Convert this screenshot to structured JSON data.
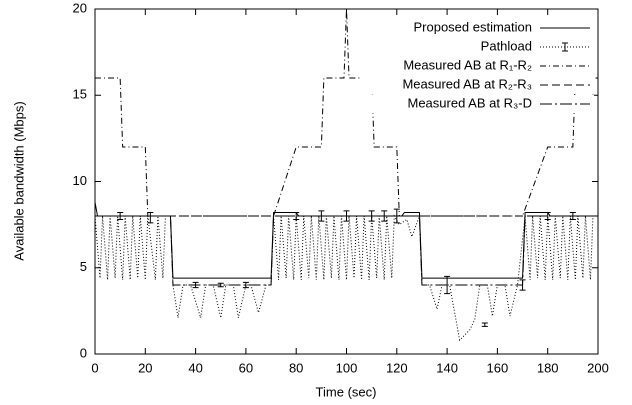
{
  "chart_data": {
    "type": "line",
    "xlabel": "Time (sec)",
    "ylabel": "Available bandwidth (Mbps)",
    "xlim": [
      0,
      200
    ],
    "xticks": [
      0,
      20,
      40,
      60,
      80,
      100,
      120,
      140,
      160,
      180,
      200
    ],
    "ylim": [
      0,
      20
    ],
    "yticks": [
      0,
      5,
      10,
      15,
      20
    ],
    "legend": "upper right",
    "series": [
      {
        "name": "Proposed estimation",
        "color": "#000000",
        "dash": "none",
        "x": [
          0,
          1,
          30,
          31,
          70,
          71,
          80,
          81,
          122,
          123,
          129,
          130,
          170,
          171,
          180,
          181,
          200
        ],
        "values": [
          8.8,
          8,
          8,
          4.4,
          4.4,
          8.2,
          8.2,
          8,
          8,
          8.2,
          8.2,
          4.4,
          4.4,
          8.2,
          8.2,
          8,
          8
        ]
      },
      {
        "name": "Pathload",
        "color": "#000000",
        "dash": "1,2",
        "x": [
          0,
          2,
          3,
          5,
          6,
          8,
          9,
          11,
          12,
          14,
          15,
          17,
          18,
          20,
          21,
          24,
          25,
          27,
          28,
          30,
          31,
          33,
          35,
          38,
          42,
          44,
          47,
          50,
          52,
          55,
          57,
          60,
          62,
          65,
          68,
          70,
          71,
          73,
          74,
          76,
          77,
          79,
          80,
          82,
          83,
          85,
          86,
          88,
          89,
          91,
          92,
          94,
          95,
          97,
          98,
          100,
          101,
          103,
          104,
          106,
          107,
          109,
          110,
          112,
          113,
          115,
          116,
          118,
          119,
          121,
          124,
          126,
          129,
          130,
          133,
          136,
          138,
          141,
          145,
          149,
          151,
          153,
          156,
          158,
          160,
          163,
          165,
          168,
          171,
          173,
          174,
          176,
          177,
          179,
          180,
          182,
          183,
          185,
          186,
          188,
          189,
          191,
          192,
          194,
          195,
          197,
          198,
          200
        ],
        "values": [
          8,
          4.4,
          8,
          4.3,
          8,
          4.4,
          8,
          4.3,
          8,
          4.3,
          8,
          4.4,
          8,
          4.3,
          8,
          4.3,
          8,
          4.4,
          8,
          8,
          4,
          2.1,
          4,
          4,
          2.1,
          4,
          4,
          2.1,
          4,
          4,
          2.1,
          4,
          4,
          2.4,
          4,
          4,
          8,
          4.3,
          8,
          4.4,
          8,
          4.3,
          8,
          4.3,
          8,
          4.4,
          8,
          4.3,
          8,
          4.3,
          8,
          4.4,
          8,
          4.3,
          8,
          4.3,
          8,
          4.4,
          8,
          4.3,
          8,
          4.3,
          8,
          4.4,
          8,
          4.3,
          8,
          4.4,
          8,
          7.5,
          7.8,
          6.8,
          8,
          4,
          4,
          2.6,
          4,
          4,
          0.8,
          1.4,
          2,
          4,
          4,
          2.2,
          4,
          4,
          2.2,
          4,
          8,
          4.3,
          8,
          4.4,
          8,
          4.3,
          8,
          4.3,
          8,
          4.4,
          8,
          4.3,
          8,
          4.3,
          8,
          4.4,
          8,
          4.3,
          8,
          8
        ],
        "bar_x": [
          10,
          22,
          40,
          50,
          60,
          80,
          90,
          100,
          110,
          115,
          120,
          140,
          155,
          170,
          180,
          190
        ],
        "bar_values": [
          8,
          7.9,
          4,
          4,
          4,
          8,
          8,
          8,
          8,
          8,
          8,
          4,
          1.7,
          4,
          8,
          8
        ],
        "bar_errors": [
          0.2,
          0.3,
          0.15,
          0.1,
          0.15,
          0.2,
          0.3,
          0.3,
          0.3,
          0.3,
          0.4,
          0.5,
          0.1,
          0.3,
          0.2,
          0.2
        ]
      },
      {
        "name": "Measured AB at R₁-R₂",
        "color": "#000000",
        "dash": "6,3,1,3",
        "x": [
          0,
          10,
          11,
          20,
          21,
          71,
          80,
          90,
          91,
          99,
          100,
          101,
          110,
          111,
          120,
          121,
          170,
          180,
          190,
          191,
          200
        ],
        "values": [
          16,
          16,
          12,
          12,
          8,
          8,
          12,
          12,
          16,
          16,
          20,
          16,
          16,
          12,
          12,
          8,
          8,
          12,
          12,
          16,
          16
        ]
      },
      {
        "name": "Measured AB at R₂-R₃",
        "color": "#000000",
        "dash": "8,4",
        "x": [
          0,
          200
        ],
        "values": [
          8,
          8
        ]
      },
      {
        "name": "Measured AB at R₃-D",
        "color": "#000000",
        "dash": "12,3,2,3",
        "x": [
          0,
          30,
          31,
          70,
          71,
          129,
          130,
          170,
          171,
          200
        ],
        "values": [
          8,
          8,
          4,
          4,
          8,
          8,
          4,
          4,
          8,
          8
        ]
      }
    ]
  }
}
